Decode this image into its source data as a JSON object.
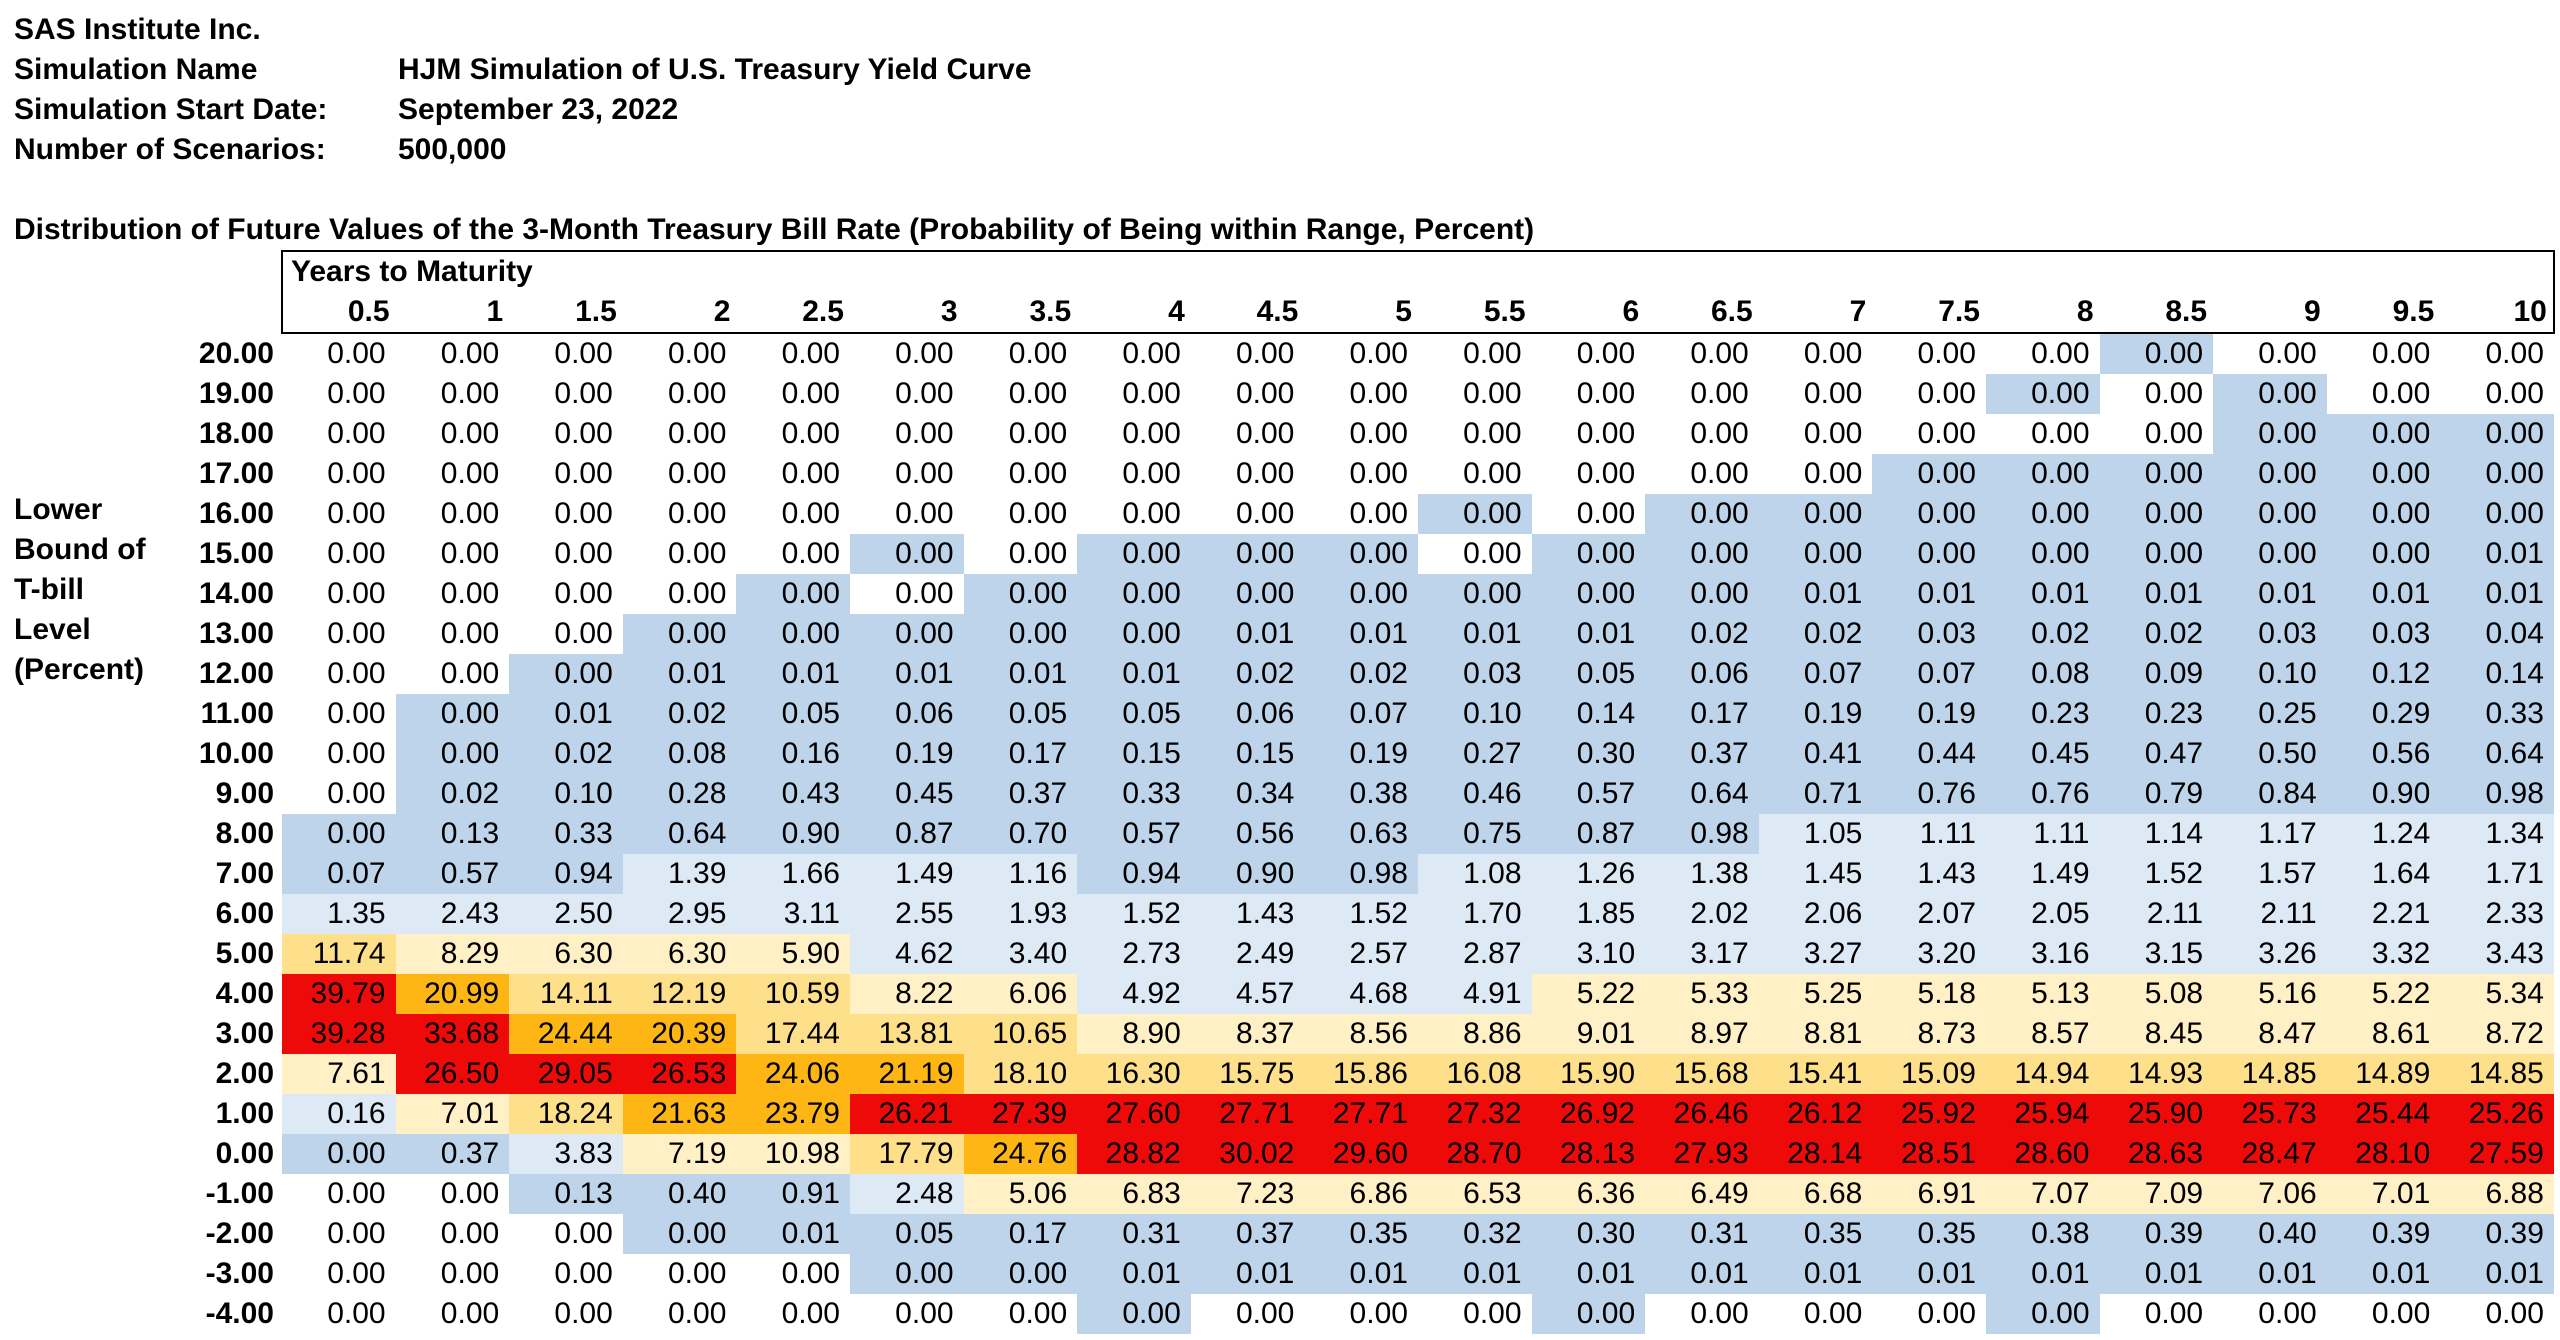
{
  "header": {
    "company": "SAS Institute Inc.",
    "rows": [
      {
        "label": "Simulation Name",
        "value": "HJM Simulation of U.S. Treasury Yield Curve"
      },
      {
        "label": "Simulation Start Date:",
        "value": "September 23, 2022"
      },
      {
        "label": "Number of Scenarios:",
        "value": "500,000"
      }
    ]
  },
  "table": {
    "title": "Distribution of Future Values of the 3-Month Treasury Bill Rate (Probability of Being within Range, Percent)",
    "years_header": "Years to Maturity",
    "side_label": [
      "Lower",
      "Bound of",
      "T-bill",
      "Level",
      "(Percent)"
    ],
    "color_scale": {
      "white": "#ffffff",
      "blue": "#bed4ea",
      "light_blue": "#dde9f5",
      "light_yellow": "#fff0c6",
      "yellow": "#ffe08a",
      "orange": "#fdb614",
      "red": "#ef0a0a"
    },
    "columns": [
      "0.5",
      "1",
      "1.5",
      "2",
      "2.5",
      "3",
      "3.5",
      "4",
      "4.5",
      "5",
      "5.5",
      "6",
      "6.5",
      "7",
      "7.5",
      "8",
      "8.5",
      "9",
      "9.5",
      "10"
    ],
    "rows": [
      {
        "label": "20.00",
        "values": [
          "0.00",
          "0.00",
          "0.00",
          "0.00",
          "0.00",
          "0.00",
          "0.00",
          "0.00",
          "0.00",
          "0.00",
          "0.00",
          "0.00",
          "0.00",
          "0.00",
          "0.00",
          "0.00",
          "0.00",
          "0.00",
          "0.00",
          "0.00"
        ],
        "colors": [
          0,
          0,
          0,
          0,
          0,
          0,
          0,
          0,
          0,
          0,
          0,
          0,
          0,
          0,
          0,
          0,
          1,
          0,
          0,
          0
        ]
      },
      {
        "label": "19.00",
        "values": [
          "0.00",
          "0.00",
          "0.00",
          "0.00",
          "0.00",
          "0.00",
          "0.00",
          "0.00",
          "0.00",
          "0.00",
          "0.00",
          "0.00",
          "0.00",
          "0.00",
          "0.00",
          "0.00",
          "0.00",
          "0.00",
          "0.00",
          "0.00"
        ],
        "colors": [
          0,
          0,
          0,
          0,
          0,
          0,
          0,
          0,
          0,
          0,
          0,
          0,
          0,
          0,
          0,
          1,
          0,
          1,
          0,
          0
        ]
      },
      {
        "label": "18.00",
        "values": [
          "0.00",
          "0.00",
          "0.00",
          "0.00",
          "0.00",
          "0.00",
          "0.00",
          "0.00",
          "0.00",
          "0.00",
          "0.00",
          "0.00",
          "0.00",
          "0.00",
          "0.00",
          "0.00",
          "0.00",
          "0.00",
          "0.00",
          "0.00"
        ],
        "colors": [
          0,
          0,
          0,
          0,
          0,
          0,
          0,
          0,
          0,
          0,
          0,
          0,
          0,
          0,
          0,
          0,
          0,
          1,
          1,
          1
        ]
      },
      {
        "label": "17.00",
        "values": [
          "0.00",
          "0.00",
          "0.00",
          "0.00",
          "0.00",
          "0.00",
          "0.00",
          "0.00",
          "0.00",
          "0.00",
          "0.00",
          "0.00",
          "0.00",
          "0.00",
          "0.00",
          "0.00",
          "0.00",
          "0.00",
          "0.00",
          "0.00"
        ],
        "colors": [
          0,
          0,
          0,
          0,
          0,
          0,
          0,
          0,
          0,
          0,
          0,
          0,
          0,
          0,
          1,
          1,
          1,
          1,
          1,
          1
        ]
      },
      {
        "label": "16.00",
        "values": [
          "0.00",
          "0.00",
          "0.00",
          "0.00",
          "0.00",
          "0.00",
          "0.00",
          "0.00",
          "0.00",
          "0.00",
          "0.00",
          "0.00",
          "0.00",
          "0.00",
          "0.00",
          "0.00",
          "0.00",
          "0.00",
          "0.00",
          "0.00"
        ],
        "colors": [
          0,
          0,
          0,
          0,
          0,
          0,
          0,
          0,
          0,
          0,
          1,
          0,
          1,
          1,
          1,
          1,
          1,
          1,
          1,
          1
        ]
      },
      {
        "label": "15.00",
        "values": [
          "0.00",
          "0.00",
          "0.00",
          "0.00",
          "0.00",
          "0.00",
          "0.00",
          "0.00",
          "0.00",
          "0.00",
          "0.00",
          "0.00",
          "0.00",
          "0.00",
          "0.00",
          "0.00",
          "0.00",
          "0.00",
          "0.00",
          "0.01"
        ],
        "colors": [
          0,
          0,
          0,
          0,
          0,
          1,
          0,
          1,
          1,
          1,
          0,
          1,
          1,
          1,
          1,
          1,
          1,
          1,
          1,
          1
        ]
      },
      {
        "label": "14.00",
        "values": [
          "0.00",
          "0.00",
          "0.00",
          "0.00",
          "0.00",
          "0.00",
          "0.00",
          "0.00",
          "0.00",
          "0.00",
          "0.00",
          "0.00",
          "0.00",
          "0.01",
          "0.01",
          "0.01",
          "0.01",
          "0.01",
          "0.01",
          "0.01"
        ],
        "colors": [
          0,
          0,
          0,
          0,
          1,
          0,
          1,
          1,
          1,
          1,
          1,
          1,
          1,
          1,
          1,
          1,
          1,
          1,
          1,
          1
        ]
      },
      {
        "label": "13.00",
        "values": [
          "0.00",
          "0.00",
          "0.00",
          "0.00",
          "0.00",
          "0.00",
          "0.00",
          "0.00",
          "0.01",
          "0.01",
          "0.01",
          "0.01",
          "0.02",
          "0.02",
          "0.03",
          "0.02",
          "0.02",
          "0.03",
          "0.03",
          "0.04"
        ],
        "colors": [
          0,
          0,
          0,
          1,
          1,
          1,
          1,
          1,
          1,
          1,
          1,
          1,
          1,
          1,
          1,
          1,
          1,
          1,
          1,
          1
        ]
      },
      {
        "label": "12.00",
        "values": [
          "0.00",
          "0.00",
          "0.00",
          "0.01",
          "0.01",
          "0.01",
          "0.01",
          "0.01",
          "0.02",
          "0.02",
          "0.03",
          "0.05",
          "0.06",
          "0.07",
          "0.07",
          "0.08",
          "0.09",
          "0.10",
          "0.12",
          "0.14"
        ],
        "colors": [
          0,
          0,
          1,
          1,
          1,
          1,
          1,
          1,
          1,
          1,
          1,
          1,
          1,
          1,
          1,
          1,
          1,
          1,
          1,
          1
        ]
      },
      {
        "label": "11.00",
        "values": [
          "0.00",
          "0.00",
          "0.01",
          "0.02",
          "0.05",
          "0.06",
          "0.05",
          "0.05",
          "0.06",
          "0.07",
          "0.10",
          "0.14",
          "0.17",
          "0.19",
          "0.19",
          "0.23",
          "0.23",
          "0.25",
          "0.29",
          "0.33"
        ],
        "colors": [
          0,
          1,
          1,
          1,
          1,
          1,
          1,
          1,
          1,
          1,
          1,
          1,
          1,
          1,
          1,
          1,
          1,
          1,
          1,
          1
        ]
      },
      {
        "label": "10.00",
        "values": [
          "0.00",
          "0.00",
          "0.02",
          "0.08",
          "0.16",
          "0.19",
          "0.17",
          "0.15",
          "0.15",
          "0.19",
          "0.27",
          "0.30",
          "0.37",
          "0.41",
          "0.44",
          "0.45",
          "0.47",
          "0.50",
          "0.56",
          "0.64"
        ],
        "colors": [
          0,
          1,
          1,
          1,
          1,
          1,
          1,
          1,
          1,
          1,
          1,
          1,
          1,
          1,
          1,
          1,
          1,
          1,
          1,
          1
        ]
      },
      {
        "label": "9.00",
        "values": [
          "0.00",
          "0.02",
          "0.10",
          "0.28",
          "0.43",
          "0.45",
          "0.37",
          "0.33",
          "0.34",
          "0.38",
          "0.46",
          "0.57",
          "0.64",
          "0.71",
          "0.76",
          "0.76",
          "0.79",
          "0.84",
          "0.90",
          "0.98"
        ],
        "colors": [
          0,
          1,
          1,
          1,
          1,
          1,
          1,
          1,
          1,
          1,
          1,
          1,
          1,
          1,
          1,
          1,
          1,
          1,
          1,
          1
        ]
      },
      {
        "label": "8.00",
        "values": [
          "0.00",
          "0.13",
          "0.33",
          "0.64",
          "0.90",
          "0.87",
          "0.70",
          "0.57",
          "0.56",
          "0.63",
          "0.75",
          "0.87",
          "0.98",
          "1.05",
          "1.11",
          "1.11",
          "1.14",
          "1.17",
          "1.24",
          "1.34"
        ],
        "colors": [
          1,
          1,
          1,
          1,
          1,
          1,
          1,
          1,
          1,
          1,
          1,
          1,
          1,
          2,
          2,
          2,
          2,
          2,
          2,
          2
        ]
      },
      {
        "label": "7.00",
        "values": [
          "0.07",
          "0.57",
          "0.94",
          "1.39",
          "1.66",
          "1.49",
          "1.16",
          "0.94",
          "0.90",
          "0.98",
          "1.08",
          "1.26",
          "1.38",
          "1.45",
          "1.43",
          "1.49",
          "1.52",
          "1.57",
          "1.64",
          "1.71"
        ],
        "colors": [
          1,
          1,
          1,
          2,
          2,
          2,
          2,
          1,
          1,
          1,
          2,
          2,
          2,
          2,
          2,
          2,
          2,
          2,
          2,
          2
        ]
      },
      {
        "label": "6.00",
        "values": [
          "1.35",
          "2.43",
          "2.50",
          "2.95",
          "3.11",
          "2.55",
          "1.93",
          "1.52",
          "1.43",
          "1.52",
          "1.70",
          "1.85",
          "2.02",
          "2.06",
          "2.07",
          "2.05",
          "2.11",
          "2.11",
          "2.21",
          "2.33"
        ],
        "colors": [
          2,
          2,
          2,
          2,
          2,
          2,
          2,
          2,
          2,
          2,
          2,
          2,
          2,
          2,
          2,
          2,
          2,
          2,
          2,
          2
        ]
      },
      {
        "label": "5.00",
        "values": [
          "11.74",
          "8.29",
          "6.30",
          "6.30",
          "5.90",
          "4.62",
          "3.40",
          "2.73",
          "2.49",
          "2.57",
          "2.87",
          "3.10",
          "3.17",
          "3.27",
          "3.20",
          "3.16",
          "3.15",
          "3.26",
          "3.32",
          "3.43"
        ],
        "colors": [
          4,
          3,
          3,
          3,
          3,
          2,
          2,
          2,
          2,
          2,
          2,
          2,
          2,
          2,
          2,
          2,
          2,
          2,
          2,
          2
        ]
      },
      {
        "label": "4.00",
        "values": [
          "39.79",
          "20.99",
          "14.11",
          "12.19",
          "10.59",
          "8.22",
          "6.06",
          "4.92",
          "4.57",
          "4.68",
          "4.91",
          "5.22",
          "5.33",
          "5.25",
          "5.18",
          "5.13",
          "5.08",
          "5.16",
          "5.22",
          "5.34"
        ],
        "colors": [
          6,
          5,
          4,
          4,
          4,
          3,
          3,
          2,
          2,
          2,
          2,
          3,
          3,
          3,
          3,
          3,
          3,
          3,
          3,
          3
        ]
      },
      {
        "label": "3.00",
        "values": [
          "39.28",
          "33.68",
          "24.44",
          "20.39",
          "17.44",
          "13.81",
          "10.65",
          "8.90",
          "8.37",
          "8.56",
          "8.86",
          "9.01",
          "8.97",
          "8.81",
          "8.73",
          "8.57",
          "8.45",
          "8.47",
          "8.61",
          "8.72"
        ],
        "colors": [
          6,
          6,
          5,
          5,
          4,
          4,
          4,
          3,
          3,
          3,
          3,
          3,
          3,
          3,
          3,
          3,
          3,
          3,
          3,
          3
        ]
      },
      {
        "label": "2.00",
        "values": [
          "7.61",
          "26.50",
          "29.05",
          "26.53",
          "24.06",
          "21.19",
          "18.10",
          "16.30",
          "15.75",
          "15.86",
          "16.08",
          "15.90",
          "15.68",
          "15.41",
          "15.09",
          "14.94",
          "14.93",
          "14.85",
          "14.89",
          "14.85"
        ],
        "colors": [
          3,
          6,
          6,
          6,
          5,
          5,
          4,
          4,
          4,
          4,
          4,
          4,
          4,
          4,
          4,
          4,
          4,
          4,
          4,
          4
        ]
      },
      {
        "label": "1.00",
        "values": [
          "0.16",
          "7.01",
          "18.24",
          "21.63",
          "23.79",
          "26.21",
          "27.39",
          "27.60",
          "27.71",
          "27.71",
          "27.32",
          "26.92",
          "26.46",
          "26.12",
          "25.92",
          "25.94",
          "25.90",
          "25.73",
          "25.44",
          "25.26"
        ],
        "colors": [
          2,
          3,
          4,
          5,
          5,
          6,
          6,
          6,
          6,
          6,
          6,
          6,
          6,
          6,
          6,
          6,
          6,
          6,
          6,
          6
        ]
      },
      {
        "label": "0.00",
        "values": [
          "0.00",
          "0.37",
          "3.83",
          "7.19",
          "10.98",
          "17.79",
          "24.76",
          "28.82",
          "30.02",
          "29.60",
          "28.70",
          "28.13",
          "27.93",
          "28.14",
          "28.51",
          "28.60",
          "28.63",
          "28.47",
          "28.10",
          "27.59"
        ],
        "colors": [
          1,
          1,
          2,
          3,
          3,
          4,
          5,
          6,
          6,
          6,
          6,
          6,
          6,
          6,
          6,
          6,
          6,
          6,
          6,
          6
        ]
      },
      {
        "label": "-1.00",
        "values": [
          "0.00",
          "0.00",
          "0.13",
          "0.40",
          "0.91",
          "2.48",
          "5.06",
          "6.83",
          "7.23",
          "6.86",
          "6.53",
          "6.36",
          "6.49",
          "6.68",
          "6.91",
          "7.07",
          "7.09",
          "7.06",
          "7.01",
          "6.88"
        ],
        "colors": [
          0,
          0,
          1,
          1,
          1,
          2,
          3,
          3,
          3,
          3,
          3,
          3,
          3,
          3,
          3,
          3,
          3,
          3,
          3,
          3
        ]
      },
      {
        "label": "-2.00",
        "values": [
          "0.00",
          "0.00",
          "0.00",
          "0.00",
          "0.01",
          "0.05",
          "0.17",
          "0.31",
          "0.37",
          "0.35",
          "0.32",
          "0.30",
          "0.31",
          "0.35",
          "0.35",
          "0.38",
          "0.39",
          "0.40",
          "0.39",
          "0.39"
        ],
        "colors": [
          0,
          0,
          0,
          1,
          1,
          1,
          1,
          1,
          1,
          1,
          1,
          1,
          1,
          1,
          1,
          1,
          1,
          1,
          1,
          1
        ]
      },
      {
        "label": "-3.00",
        "values": [
          "0.00",
          "0.00",
          "0.00",
          "0.00",
          "0.00",
          "0.00",
          "0.00",
          "0.01",
          "0.01",
          "0.01",
          "0.01",
          "0.01",
          "0.01",
          "0.01",
          "0.01",
          "0.01",
          "0.01",
          "0.01",
          "0.01",
          "0.01"
        ],
        "colors": [
          0,
          0,
          0,
          0,
          0,
          1,
          1,
          1,
          1,
          1,
          1,
          1,
          1,
          1,
          1,
          1,
          1,
          1,
          1,
          1
        ]
      },
      {
        "label": "-4.00",
        "values": [
          "0.00",
          "0.00",
          "0.00",
          "0.00",
          "0.00",
          "0.00",
          "0.00",
          "0.00",
          "0.00",
          "0.00",
          "0.00",
          "0.00",
          "0.00",
          "0.00",
          "0.00",
          "0.00",
          "0.00",
          "0.00",
          "0.00",
          "0.00"
        ],
        "colors": [
          0,
          0,
          0,
          0,
          0,
          0,
          0,
          1,
          0,
          0,
          0,
          1,
          0,
          0,
          0,
          1,
          0,
          0,
          0,
          0
        ]
      }
    ]
  }
}
